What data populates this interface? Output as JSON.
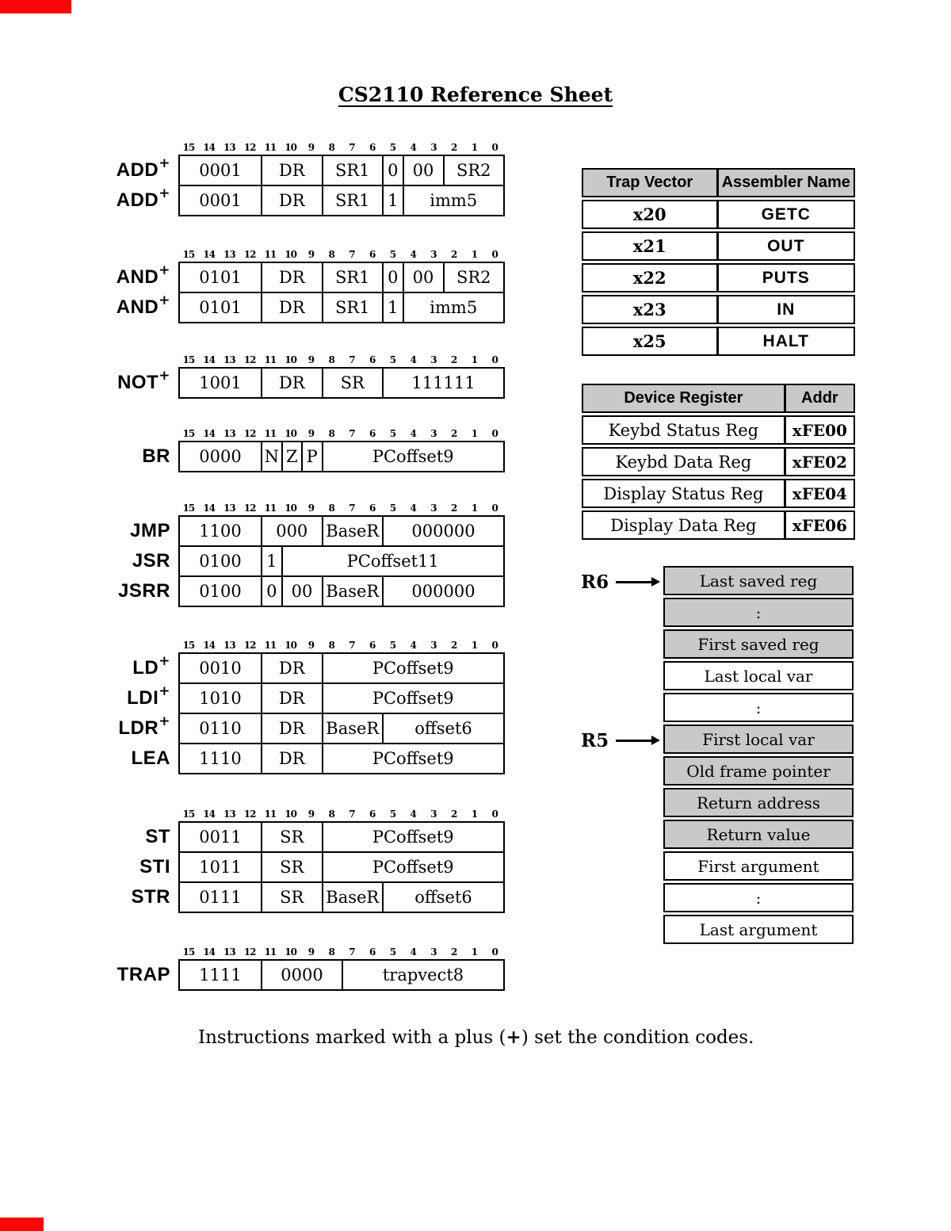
{
  "title": "CS2110 Reference Sheet",
  "bit_labels": [
    "15",
    "14",
    "13",
    "12",
    "11",
    "10",
    "9",
    "8",
    "7",
    "6",
    "5",
    "4",
    "3",
    "2",
    "1",
    "0"
  ],
  "instruction_groups": [
    {
      "rows": [
        {
          "mnemonic": "ADD",
          "sup": "+",
          "fields": [
            {
              "text": "0001",
              "bits": 4
            },
            {
              "text": "DR",
              "bits": 3
            },
            {
              "text": "SR1",
              "bits": 3
            },
            {
              "text": "0",
              "bits": 1
            },
            {
              "text": "00",
              "bits": 2
            },
            {
              "text": "SR2",
              "bits": 3
            }
          ]
        },
        {
          "mnemonic": "ADD",
          "sup": "+",
          "fields": [
            {
              "text": "0001",
              "bits": 4
            },
            {
              "text": "DR",
              "bits": 3
            },
            {
              "text": "SR1",
              "bits": 3
            },
            {
              "text": "1",
              "bits": 1
            },
            {
              "text": "imm5",
              "bits": 5
            }
          ]
        }
      ]
    },
    {
      "rows": [
        {
          "mnemonic": "AND",
          "sup": "+",
          "fields": [
            {
              "text": "0101",
              "bits": 4
            },
            {
              "text": "DR",
              "bits": 3
            },
            {
              "text": "SR1",
              "bits": 3
            },
            {
              "text": "0",
              "bits": 1
            },
            {
              "text": "00",
              "bits": 2
            },
            {
              "text": "SR2",
              "bits": 3
            }
          ]
        },
        {
          "mnemonic": "AND",
          "sup": "+",
          "fields": [
            {
              "text": "0101",
              "bits": 4
            },
            {
              "text": "DR",
              "bits": 3
            },
            {
              "text": "SR1",
              "bits": 3
            },
            {
              "text": "1",
              "bits": 1
            },
            {
              "text": "imm5",
              "bits": 5
            }
          ]
        }
      ]
    },
    {
      "rows": [
        {
          "mnemonic": "NOT",
          "sup": "+",
          "fields": [
            {
              "text": "1001",
              "bits": 4
            },
            {
              "text": "DR",
              "bits": 3
            },
            {
              "text": "SR",
              "bits": 3
            },
            {
              "text": "111111",
              "bits": 6
            }
          ]
        }
      ]
    },
    {
      "rows": [
        {
          "mnemonic": "BR",
          "sup": "",
          "fields": [
            {
              "text": "0000",
              "bits": 4
            },
            {
              "text": "N",
              "bits": 1
            },
            {
              "text": "Z",
              "bits": 1
            },
            {
              "text": "P",
              "bits": 1
            },
            {
              "text": "PCoffset9",
              "bits": 9
            }
          ]
        }
      ]
    },
    {
      "rows": [
        {
          "mnemonic": "JMP",
          "sup": "",
          "fields": [
            {
              "text": "1100",
              "bits": 4
            },
            {
              "text": "000",
              "bits": 3
            },
            {
              "text": "BaseR",
              "bits": 3
            },
            {
              "text": "000000",
              "bits": 6
            }
          ]
        },
        {
          "mnemonic": "JSR",
          "sup": "",
          "fields": [
            {
              "text": "0100",
              "bits": 4
            },
            {
              "text": "1",
              "bits": 1
            },
            {
              "text": "PCoffset11",
              "bits": 11
            }
          ]
        },
        {
          "mnemonic": "JSRR",
          "sup": "",
          "fields": [
            {
              "text": "0100",
              "bits": 4
            },
            {
              "text": "0",
              "bits": 1
            },
            {
              "text": "00",
              "bits": 2
            },
            {
              "text": "BaseR",
              "bits": 3
            },
            {
              "text": "000000",
              "bits": 6
            }
          ]
        }
      ]
    },
    {
      "rows": [
        {
          "mnemonic": "LD",
          "sup": "+",
          "fields": [
            {
              "text": "0010",
              "bits": 4
            },
            {
              "text": "DR",
              "bits": 3
            },
            {
              "text": "PCoffset9",
              "bits": 9
            }
          ]
        },
        {
          "mnemonic": "LDI",
          "sup": "+",
          "fields": [
            {
              "text": "1010",
              "bits": 4
            },
            {
              "text": "DR",
              "bits": 3
            },
            {
              "text": "PCoffset9",
              "bits": 9
            }
          ]
        },
        {
          "mnemonic": "LDR",
          "sup": "+",
          "fields": [
            {
              "text": "0110",
              "bits": 4
            },
            {
              "text": "DR",
              "bits": 3
            },
            {
              "text": "BaseR",
              "bits": 3
            },
            {
              "text": "offset6",
              "bits": 6
            }
          ]
        },
        {
          "mnemonic": "LEA",
          "sup": "",
          "fields": [
            {
              "text": "1110",
              "bits": 4
            },
            {
              "text": "DR",
              "bits": 3
            },
            {
              "text": "PCoffset9",
              "bits": 9
            }
          ]
        }
      ]
    },
    {
      "rows": [
        {
          "mnemonic": "ST",
          "sup": "",
          "fields": [
            {
              "text": "0011",
              "bits": 4
            },
            {
              "text": "SR",
              "bits": 3
            },
            {
              "text": "PCoffset9",
              "bits": 9
            }
          ]
        },
        {
          "mnemonic": "STI",
          "sup": "",
          "fields": [
            {
              "text": "1011",
              "bits": 4
            },
            {
              "text": "SR",
              "bits": 3
            },
            {
              "text": "PCoffset9",
              "bits": 9
            }
          ]
        },
        {
          "mnemonic": "STR",
          "sup": "",
          "fields": [
            {
              "text": "0111",
              "bits": 4
            },
            {
              "text": "SR",
              "bits": 3
            },
            {
              "text": "BaseR",
              "bits": 3
            },
            {
              "text": "offset6",
              "bits": 6
            }
          ]
        }
      ]
    },
    {
      "rows": [
        {
          "mnemonic": "TRAP",
          "sup": "",
          "fields": [
            {
              "text": "1111",
              "bits": 4
            },
            {
              "text": "0000",
              "bits": 4
            },
            {
              "text": "trapvect8",
              "bits": 8
            }
          ]
        }
      ]
    }
  ],
  "trap_table": {
    "headers": [
      "Trap Vector",
      "Assembler Name"
    ],
    "rows": [
      [
        "x20",
        "GETC"
      ],
      [
        "x21",
        "OUT"
      ],
      [
        "x22",
        "PUTS"
      ],
      [
        "x23",
        "IN"
      ],
      [
        "x25",
        "HALT"
      ]
    ]
  },
  "device_table": {
    "headers": [
      "Device Register",
      "Addr"
    ],
    "rows": [
      [
        "Keybd Status Reg",
        "xFE00"
      ],
      [
        "Keybd Data Reg",
        "xFE02"
      ],
      [
        "Display Status Reg",
        "xFE04"
      ],
      [
        "Display Data Reg",
        "xFE06"
      ]
    ]
  },
  "stack_diagram": {
    "pointers": [
      {
        "label": "R6",
        "row": 0
      },
      {
        "label": "R5",
        "row": 5
      }
    ],
    "rows": [
      {
        "text": "Last saved reg",
        "shaded": true
      },
      {
        "text": ":",
        "shaded": true
      },
      {
        "text": "First saved reg",
        "shaded": true
      },
      {
        "text": "Last local var",
        "shaded": false
      },
      {
        "text": ":",
        "shaded": false
      },
      {
        "text": "First local var",
        "shaded": true
      },
      {
        "text": "Old frame pointer",
        "shaded": true
      },
      {
        "text": "Return address",
        "shaded": true
      },
      {
        "text": "Return value",
        "shaded": true
      },
      {
        "text": "First argument",
        "shaded": false
      },
      {
        "text": ":",
        "shaded": false
      },
      {
        "text": "Last argument",
        "shaded": false
      }
    ]
  },
  "footnote": {
    "before": "Instructions marked with a plus (",
    "plus": "+",
    "after": ") set the condition codes."
  },
  "colors": {
    "shaded": "#c9c9c9",
    "red_mark": "#fa0606"
  }
}
